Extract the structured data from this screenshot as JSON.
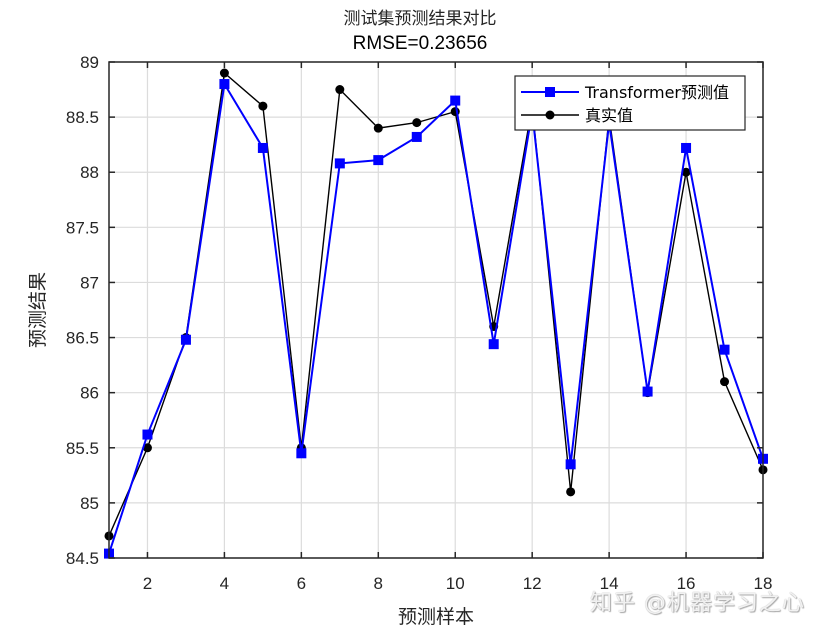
{
  "chart_data": {
    "type": "line",
    "title": "测试集预测结果对比",
    "subtitle": "RMSE=0.23656",
    "xlabel": "预测样本",
    "ylabel": "预测结果",
    "xlim": [
      1,
      18
    ],
    "ylim": [
      84.5,
      89
    ],
    "x_ticks": [
      2,
      4,
      6,
      8,
      10,
      12,
      14,
      16,
      18
    ],
    "y_ticks": [
      84.5,
      85,
      85.5,
      86,
      86.5,
      87,
      87.5,
      88,
      88.5,
      89
    ],
    "y_tick_labels": [
      "84.5",
      "85",
      "85.5",
      "86",
      "86.5",
      "87",
      "87.5",
      "88",
      "88.5",
      "89"
    ],
    "grid": true,
    "legend_position": "northeast",
    "x": [
      1,
      2,
      3,
      4,
      5,
      6,
      7,
      8,
      9,
      10,
      11,
      12,
      13,
      14,
      15,
      16,
      17,
      18
    ],
    "series": [
      {
        "name": "Transformer预测值",
        "color": "#0000ff",
        "marker": "square",
        "values": [
          84.54,
          85.62,
          86.48,
          88.8,
          88.22,
          85.45,
          88.08,
          88.11,
          88.32,
          88.65,
          86.44,
          88.55,
          85.35,
          88.45,
          86.01,
          88.22,
          86.39,
          85.4
        ]
      },
      {
        "name": "真实值",
        "color": "#000000",
        "marker": "circle",
        "values": [
          84.7,
          85.5,
          86.5,
          88.9,
          88.6,
          85.5,
          88.75,
          88.4,
          88.45,
          88.55,
          86.6,
          88.6,
          85.1,
          88.5,
          86.0,
          88.0,
          86.1,
          85.3
        ]
      }
    ]
  },
  "watermark": "知乎 @机器学习之心"
}
